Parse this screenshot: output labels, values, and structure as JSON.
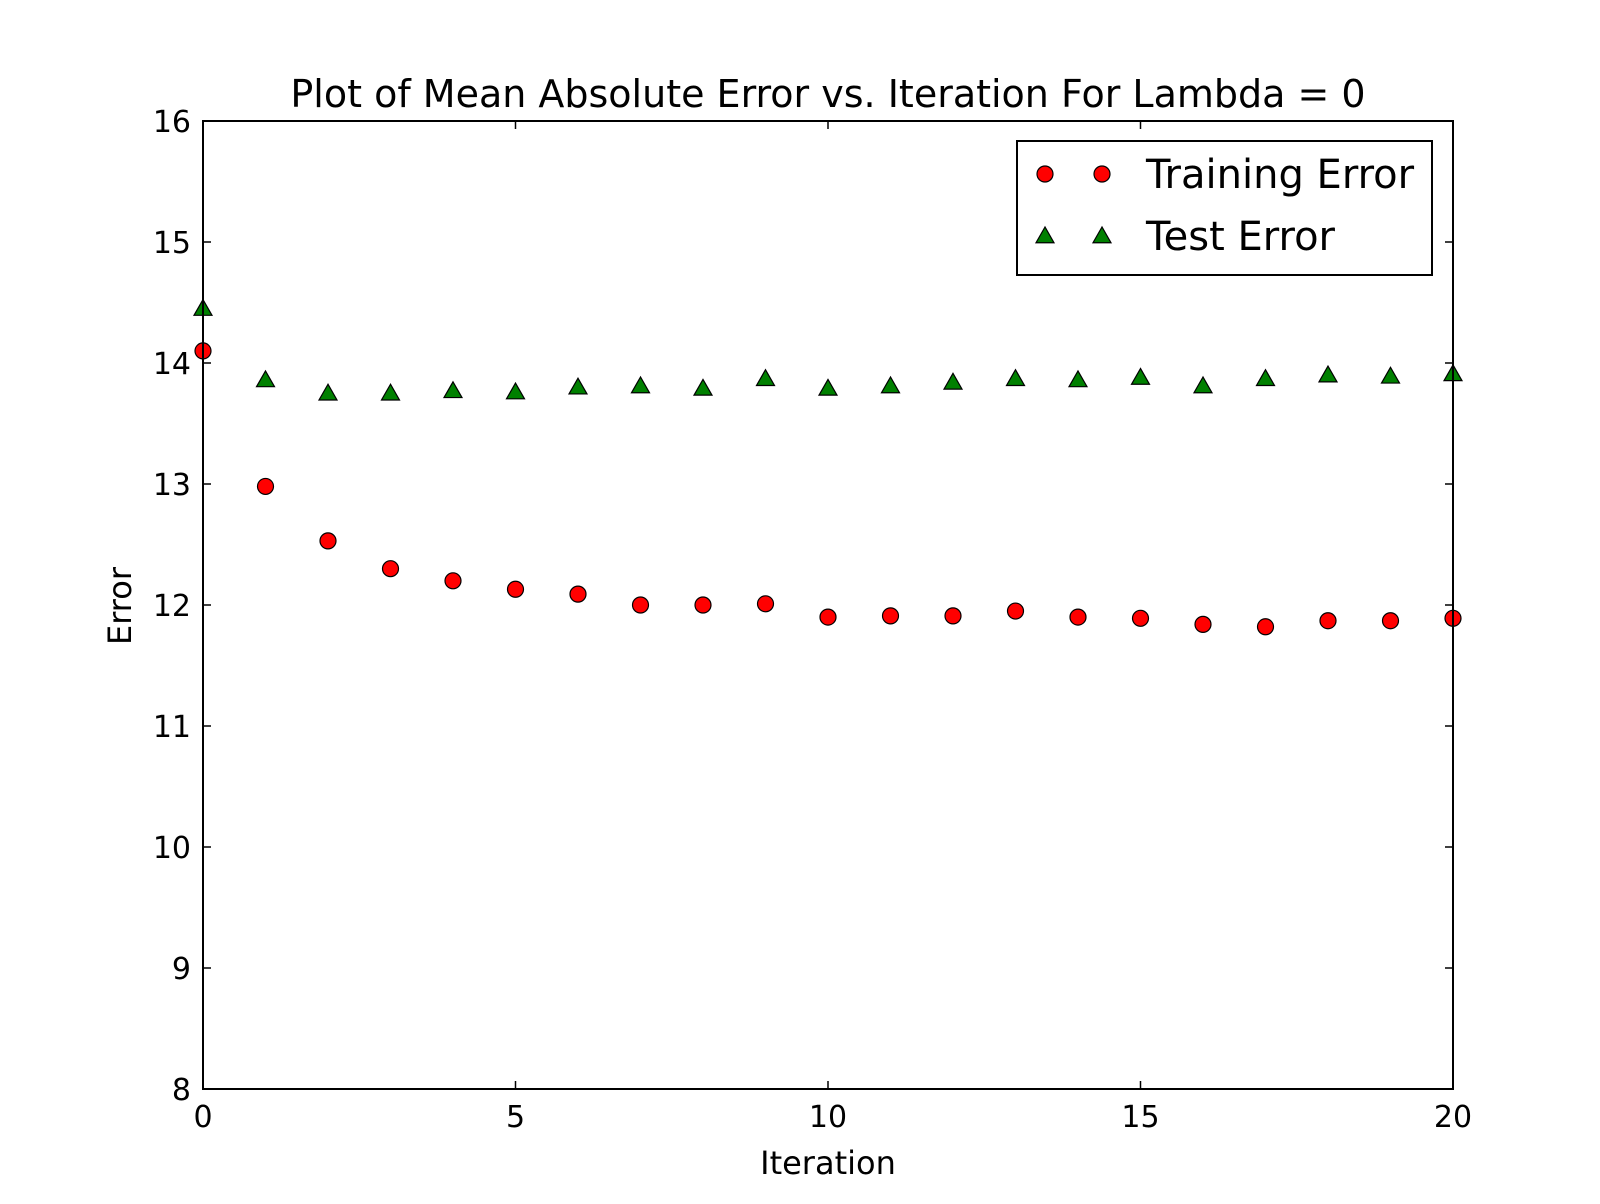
{
  "chart_data": {
    "type": "scatter",
    "title": "Plot of Mean Absolute Error vs. Iteration For Lambda = 0",
    "xlabel": "Iteration",
    "ylabel": "Error",
    "xlim": [
      0,
      20
    ],
    "ylim": [
      8,
      16
    ],
    "xticks": [
      "0",
      "5",
      "10",
      "15",
      "20"
    ],
    "xtick_values": [
      0,
      5,
      10,
      15,
      20
    ],
    "yticks": [
      "8",
      "9",
      "10",
      "11",
      "12",
      "13",
      "14",
      "15",
      "16"
    ],
    "ytick_values": [
      8,
      9,
      10,
      11,
      12,
      13,
      14,
      15,
      16
    ],
    "grid": false,
    "legend_position": "top-right",
    "x": [
      0,
      1,
      2,
      3,
      4,
      5,
      6,
      7,
      8,
      9,
      10,
      11,
      12,
      13,
      14,
      15,
      16,
      17,
      18,
      19,
      20
    ],
    "series": [
      {
        "name": "Training Error",
        "marker": "circle",
        "color": "#ff0000",
        "values": [
          14.1,
          12.98,
          12.53,
          12.3,
          12.2,
          12.13,
          12.09,
          12.0,
          12.0,
          12.01,
          11.9,
          11.91,
          11.91,
          11.95,
          11.9,
          11.89,
          11.84,
          11.82,
          11.87,
          11.87,
          11.89
        ]
      },
      {
        "name": "Test Error",
        "marker": "triangle",
        "color": "#008000",
        "values": [
          14.45,
          13.86,
          13.75,
          13.75,
          13.77,
          13.76,
          13.8,
          13.81,
          13.79,
          13.87,
          13.79,
          13.81,
          13.84,
          13.87,
          13.86,
          13.88,
          13.81,
          13.87,
          13.9,
          13.89,
          13.91
        ]
      }
    ]
  }
}
